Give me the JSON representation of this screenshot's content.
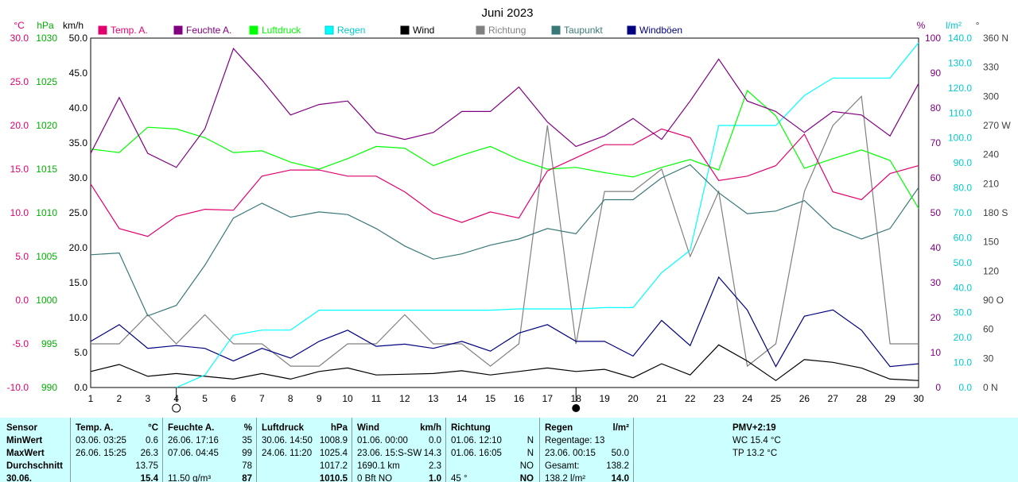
{
  "chart_data": {
    "type": "line",
    "title": "Juni 2023",
    "x": [
      1,
      2,
      3,
      4,
      5,
      6,
      7,
      8,
      9,
      10,
      11,
      12,
      13,
      14,
      15,
      16,
      17,
      18,
      19,
      20,
      21,
      22,
      23,
      24,
      25,
      26,
      27,
      28,
      29,
      30
    ],
    "xlim": [
      1,
      30
    ],
    "grid": true,
    "legend_position": "top",
    "axes": [
      {
        "unit": "°C",
        "ticks": [
          "30.0",
          "25.0",
          "20.0",
          "15.0",
          "10.0",
          "5.0",
          "0.0",
          "-5.0",
          "-10.0"
        ],
        "range": [
          -10,
          30
        ],
        "color": "#e0006e"
      },
      {
        "unit": "hPa",
        "ticks": [
          "1030",
          "1025",
          "1020",
          "1015",
          "1010",
          "1005",
          "1000",
          "995",
          "990"
        ],
        "range": [
          990,
          1030
        ],
        "color": "#00b000"
      },
      {
        "unit": "km/h",
        "ticks": [
          "50.0",
          "45.0",
          "40.0",
          "35.0",
          "30.0",
          "25.0",
          "20.0",
          "15.0",
          "10.0",
          "5.0",
          "0.0"
        ],
        "range": [
          0,
          50
        ],
        "color": "#000000"
      },
      {
        "unit": "%",
        "ticks": [
          "100",
          "90",
          "80",
          "70",
          "60",
          "50",
          "40",
          "30",
          "20",
          "10",
          "0"
        ],
        "range": [
          0,
          100
        ],
        "color": "#800080"
      },
      {
        "unit": "l/m²",
        "ticks": [
          "140.0",
          "130.0",
          "120.0",
          "110.0",
          "100.0",
          "90.0",
          "80.0",
          "70.0",
          "60.0",
          "50.0",
          "40.0",
          "30.0",
          "20.0",
          "10.0",
          "0.0"
        ],
        "range": [
          0,
          140
        ],
        "color": "#00cccc"
      },
      {
        "unit": "°",
        "ticks": [
          "360 N",
          "330",
          "300",
          "270 W",
          "240",
          "210",
          "180 S",
          "150",
          "120",
          "90 O",
          "60",
          "30",
          "0 N"
        ],
        "range": [
          0,
          360
        ],
        "color": "#404040"
      }
    ],
    "series": [
      {
        "name": "Temp. A.",
        "axis": "°C",
        "color": "#e0006e",
        "values": [
          13.3,
          8.2,
          7.3,
          9.6,
          10.4,
          10.3,
          14.2,
          14.9,
          14.9,
          14.2,
          14.2,
          12.4,
          10.0,
          8.9,
          10.1,
          9.4,
          14.8,
          16.3,
          17.8,
          17.8,
          19.6,
          18.6,
          13.7,
          14.2,
          15.4,
          19.0,
          12.4,
          11.5,
          14.5,
          15.4
        ]
      },
      {
        "name": "Feuchte A.",
        "axis": "%",
        "color": "#800080",
        "values": [
          67,
          83,
          67,
          63,
          74,
          97,
          88,
          78,
          81,
          82,
          73,
          71,
          73,
          79,
          79,
          86,
          76,
          69,
          72,
          77,
          71,
          82,
          94,
          82,
          79,
          73,
          79,
          78,
          72,
          87
        ]
      },
      {
        "name": "Luftdruck",
        "axis": "hPa",
        "color": "#00ff00",
        "values": [
          1017.3,
          1016.9,
          1019.8,
          1019.6,
          1018.6,
          1016.9,
          1017.1,
          1015.8,
          1015.0,
          1016.2,
          1017.6,
          1017.4,
          1015.4,
          1016.6,
          1017.6,
          1016.1,
          1015.0,
          1015.2,
          1014.6,
          1014.1,
          1015.2,
          1016.1,
          1014.9,
          1024.0,
          1021.1,
          1015.1,
          1016.2,
          1017.2,
          1016.0,
          1010.5
        ]
      },
      {
        "name": "Regen",
        "axis": "l/m²",
        "color": "#00ffff",
        "values": [
          null,
          null,
          null,
          0.0,
          5.0,
          21.0,
          23.0,
          23.0,
          31.0,
          31.0,
          31.0,
          31.0,
          31.0,
          31.0,
          31.0,
          31.5,
          31.5,
          31.5,
          32.0,
          32.0,
          46.0,
          55.0,
          105.0,
          105.0,
          105.0,
          117.0,
          124.0,
          124.0,
          124.0,
          138.2
        ]
      },
      {
        "name": "Wind",
        "axis": "km/h",
        "color": "#000000",
        "values": [
          2.3,
          3.3,
          1.6,
          2.0,
          1.6,
          1.2,
          2.0,
          1.2,
          2.3,
          2.8,
          1.8,
          1.9,
          2.0,
          2.4,
          1.8,
          2.3,
          2.8,
          2.3,
          2.6,
          1.4,
          3.4,
          1.8,
          6.1,
          3.8,
          1.0,
          4.0,
          3.6,
          2.8,
          1.2,
          1.0
        ]
      },
      {
        "name": "Richtung",
        "axis": "°",
        "color": "#808080",
        "values": [
          45,
          45,
          75,
          45,
          75,
          45,
          45,
          22,
          22,
          45,
          45,
          75,
          45,
          45,
          22,
          45,
          270,
          45,
          202,
          202,
          225,
          135,
          202,
          22,
          45,
          202,
          270,
          300,
          45,
          45
        ]
      },
      {
        "name": "Taupunkt",
        "axis": "°C",
        "color": "#3a7878",
        "values": [
          5.2,
          5.4,
          -1.8,
          -0.6,
          4.0,
          9.4,
          11.1,
          9.5,
          10.1,
          9.8,
          8.2,
          6.2,
          4.7,
          5.3,
          6.3,
          7.0,
          8.2,
          7.6,
          11.5,
          11.5,
          14.0,
          15.5,
          12.3,
          9.9,
          10.2,
          11.4,
          8.3,
          7.0,
          8.2,
          12.9
        ]
      },
      {
        "name": "Windböen",
        "axis": "km/h",
        "color": "#000080",
        "values": [
          6.6,
          9.0,
          5.6,
          6.0,
          5.6,
          3.8,
          5.6,
          4.2,
          6.6,
          8.2,
          5.9,
          6.2,
          5.6,
          6.6,
          5.2,
          7.8,
          9.0,
          6.6,
          6.6,
          4.5,
          9.6,
          6.0,
          15.8,
          11.1,
          3.0,
          10.2,
          11.1,
          8.2,
          3.0,
          3.4
        ]
      }
    ]
  },
  "summary": {
    "col_sensor": {
      "head": "Sensor",
      "rows": [
        "MinWert",
        "MaxWert",
        "Durchschnitt",
        "30.06."
      ]
    },
    "col_temp": {
      "head": "Temp. A.",
      "unit": "°C",
      "rows": [
        [
          "03.06.  03:25",
          "0.6"
        ],
        [
          "26.06.  15:25",
          "26.3"
        ],
        [
          "",
          "13.75"
        ],
        [
          "",
          "15.4"
        ]
      ]
    },
    "col_humidity": {
      "head": "Feuchte A.",
      "unit": "%",
      "rows": [
        [
          "26.06.  17:16",
          "35"
        ],
        [
          "07.06.  04:45",
          "99"
        ],
        [
          "",
          "78"
        ],
        [
          "11.50 g/m³",
          "87"
        ]
      ]
    },
    "col_pressure": {
      "head": "Luftdruck",
      "unit": "hPa",
      "rows": [
        [
          "30.06.  14:50",
          "1008.9"
        ],
        [
          "24.06.  11:20",
          "1025.4"
        ],
        [
          "",
          "1017.2"
        ],
        [
          "",
          "1010.5"
        ]
      ]
    },
    "col_wind": {
      "head": "Wind",
      "unit": "km/h",
      "rows": [
        [
          "01.06.  00:00",
          "0.0"
        ],
        [
          "23.06.  15:S-SW",
          "14.3"
        ],
        [
          "1690.1 km",
          "2.3"
        ],
        [
          "0 Bft NO",
          "1.0"
        ]
      ]
    },
    "col_direction": {
      "head": "Richtung",
      "unit": "",
      "rows": [
        [
          "01.06.  12:10",
          "N"
        ],
        [
          "01.06.  16:05",
          "N"
        ],
        [
          "",
          "NO"
        ],
        [
          "45 °",
          "NO"
        ]
      ]
    },
    "col_rain": {
      "head": "Regen",
      "unit": "l/m²",
      "rows": [
        [
          "Regentage: 13",
          ""
        ],
        [
          "23.06.  00:15",
          "50.0"
        ],
        [
          "Gesamt:",
          "138.2"
        ],
        [
          "138.2 l/m²",
          "14.0"
        ]
      ]
    },
    "col_pmv": {
      "head": "PMV+2:19",
      "rows": [
        "WC 15.4 °C",
        "TP 13.2 °C"
      ]
    }
  }
}
